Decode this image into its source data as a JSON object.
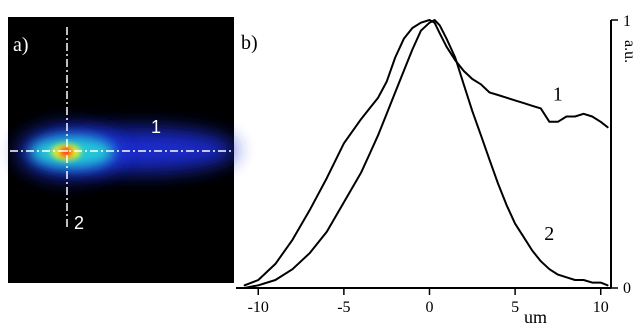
{
  "panels": {
    "a_label": "a)",
    "b_label": "b)"
  },
  "image_panel": {
    "line_1_label": "1",
    "line_2_label": "2",
    "colors": {
      "background": "#000000",
      "halo": "#1a2fd6",
      "mid": "#22c8d8",
      "core": "#e8f020",
      "peak": "#ff2a10",
      "crosshair": "#ffffff"
    }
  },
  "chart_data": {
    "type": "line",
    "title": "",
    "xlabel": "um",
    "ylabel": "a.u.",
    "xlim": [
      -11.3,
      10.6
    ],
    "ylim": [
      0,
      1
    ],
    "x_ticks": [
      -10,
      -5,
      0,
      5,
      10
    ],
    "y_ticks": [
      0,
      1
    ],
    "grid": false,
    "series": [
      {
        "name": "1",
        "x": [
          -10.8,
          -10,
          -9,
          -8,
          -7,
          -6,
          -5,
          -4,
          -3.5,
          -3,
          -2.5,
          -2,
          -1.5,
          -1,
          -0.5,
          0,
          0.3,
          0.6,
          1,
          1.5,
          2,
          2.5,
          3,
          3.5,
          4,
          4.5,
          5,
          5.5,
          6,
          6.5,
          7,
          7.5,
          8,
          8.5,
          9,
          9.5,
          10,
          10.4
        ],
        "y": [
          0.01,
          0.03,
          0.09,
          0.18,
          0.29,
          0.41,
          0.54,
          0.63,
          0.67,
          0.71,
          0.77,
          0.86,
          0.93,
          0.97,
          0.99,
          1.0,
          0.99,
          0.95,
          0.9,
          0.85,
          0.81,
          0.78,
          0.76,
          0.73,
          0.72,
          0.71,
          0.7,
          0.69,
          0.68,
          0.67,
          0.62,
          0.62,
          0.64,
          0.64,
          0.65,
          0.64,
          0.62,
          0.6
        ]
      },
      {
        "name": "2",
        "x": [
          -10.8,
          -10,
          -9,
          -8,
          -7,
          -6,
          -5,
          -4,
          -3.5,
          -3,
          -2.5,
          -2,
          -1.5,
          -1,
          -0.5,
          0,
          0.3,
          0.6,
          1,
          1.5,
          2,
          2.5,
          3,
          3.5,
          4,
          4.5,
          5,
          5.5,
          6,
          6.5,
          7,
          7.5,
          8,
          8.5,
          9,
          9.5,
          10,
          10.4
        ],
        "y": [
          0.0,
          0.01,
          0.03,
          0.07,
          0.13,
          0.21,
          0.32,
          0.43,
          0.5,
          0.57,
          0.65,
          0.73,
          0.81,
          0.89,
          0.96,
          0.99,
          1.0,
          0.98,
          0.93,
          0.86,
          0.76,
          0.66,
          0.57,
          0.48,
          0.39,
          0.31,
          0.24,
          0.19,
          0.14,
          0.1,
          0.07,
          0.05,
          0.04,
          0.03,
          0.03,
          0.02,
          0.02,
          0.01
        ]
      }
    ]
  }
}
